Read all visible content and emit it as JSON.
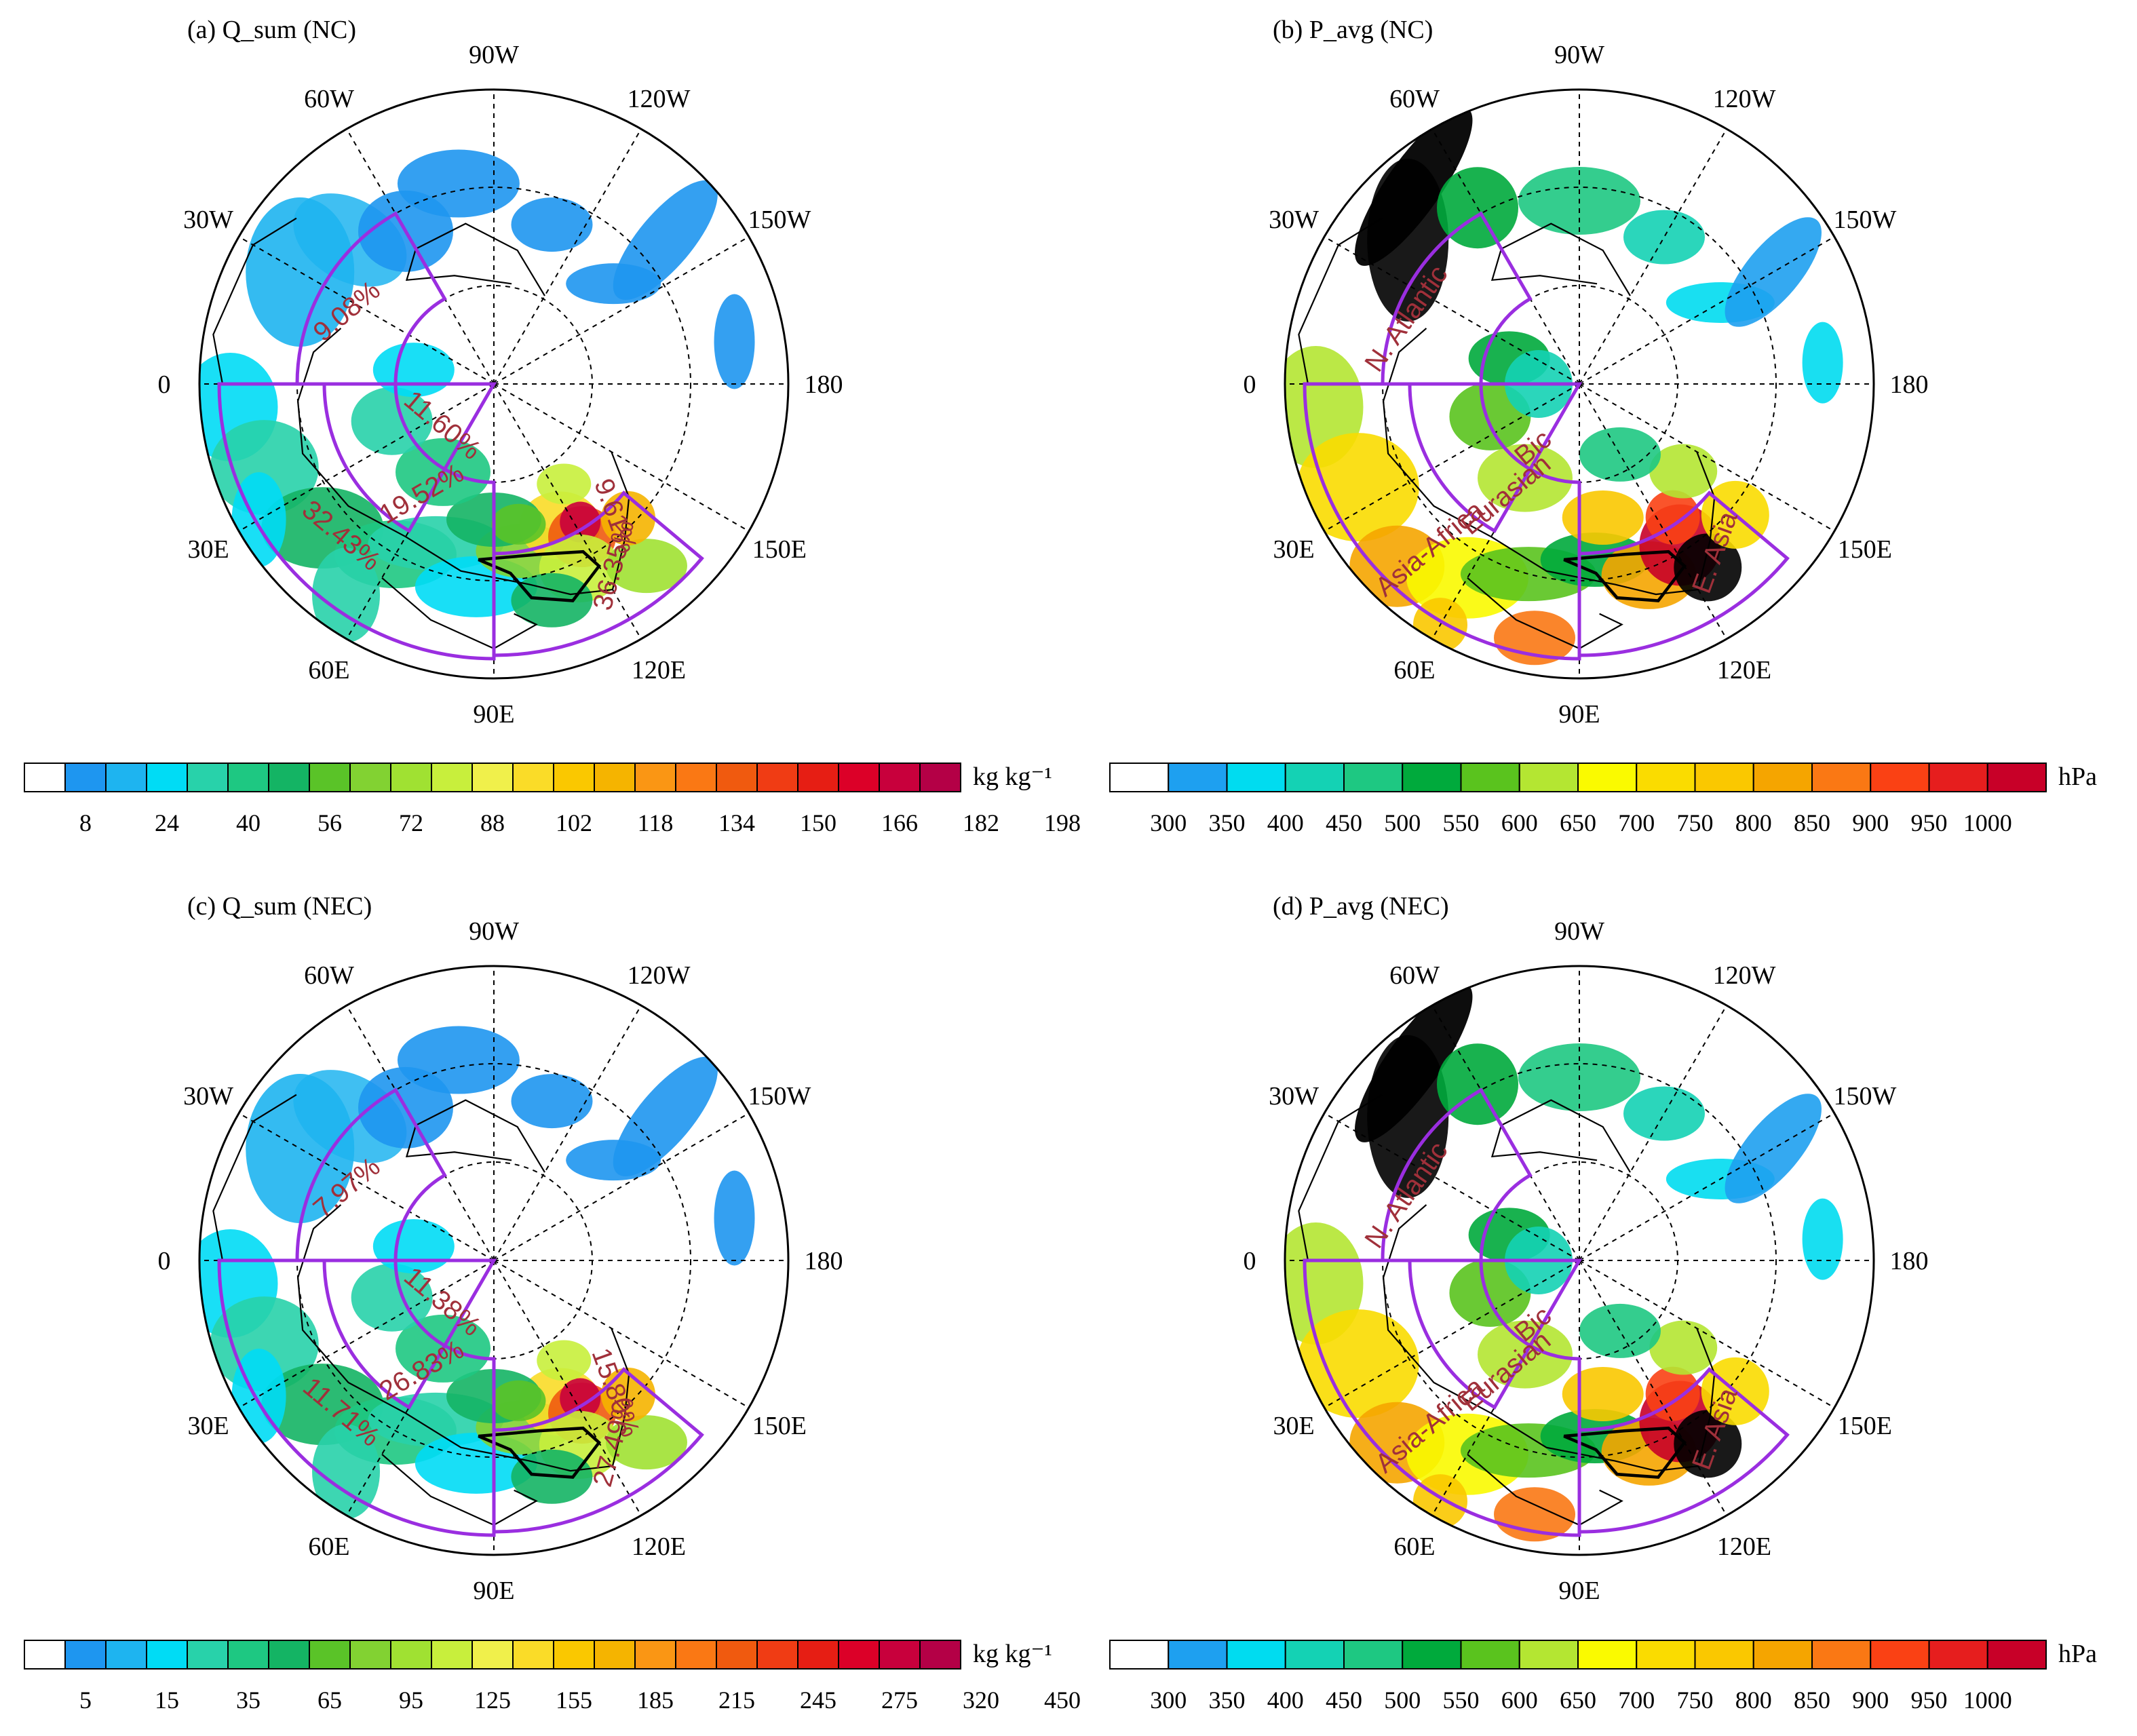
{
  "panels": [
    {
      "id": "a",
      "title": "(a) Q_sum (NC)",
      "kind": "Q",
      "outer_pct": {
        "n_atlantic": "9.08%",
        "asia_africa": "32.43%",
        "east_asia": "36.35%"
      },
      "inner_pct": {
        "arctic": "11.60%",
        "eurasian": "19.52%",
        "east_asia_upper": "9.61%"
      },
      "colorbar": {
        "unit": "kg kg⁻¹",
        "colors": [
          "#ffffff",
          "#1e96f0",
          "#1eb4f0",
          "#00dcf5",
          "#28d2aa",
          "#1ec882",
          "#14b464",
          "#5ac328",
          "#82d232",
          "#a0e132",
          "#c8ef3c",
          "#f0f04b",
          "#fadc28",
          "#fac800",
          "#f5b400",
          "#fa9614",
          "#fa7814",
          "#f05a0f",
          "#f03c14",
          "#e61e14",
          "#dc0028",
          "#c8003c",
          "#b40046"
        ],
        "labels": [
          "8",
          "24",
          "40",
          "56",
          "72",
          "88",
          "102",
          "118",
          "134",
          "150",
          "166",
          "182",
          "198"
        ]
      },
      "data_shading": "Q_sum"
    },
    {
      "id": "b",
      "title": "(b) P_avg (NC)",
      "kind": "P",
      "region_labels": {
        "n_atlantic": "N. Atlantic",
        "arctic": "Bic",
        "eurasian": "Eurasian",
        "asia_africa": "Asia-Africa",
        "east_asia": "E. Asia"
      },
      "colorbar": {
        "unit": "hPa",
        "colors": [
          "#ffffff",
          "#1ea0f0",
          "#00dcf0",
          "#14d2b4",
          "#1ec882",
          "#00aa3c",
          "#5ac31e",
          "#b4e632",
          "#fafa00",
          "#fadc00",
          "#fac800",
          "#f5a500",
          "#fa7814",
          "#fa4114",
          "#e61e1e",
          "#c80028"
        ],
        "labels": [
          "300",
          "350",
          "400",
          "450",
          "500",
          "550",
          "600",
          "650",
          "700",
          "750",
          "800",
          "850",
          "900",
          "950",
          "1000"
        ]
      },
      "data_shading": "P_avg"
    },
    {
      "id": "c",
      "title": "(c) Q_sum (NEC)",
      "kind": "Q",
      "outer_pct": {
        "n_atlantic": "7.97%",
        "asia_africa": "11.71%",
        "east_asia": "27.49%"
      },
      "inner_pct": {
        "arctic": "11.38%",
        "eurasian": "26.83%",
        "east_asia_upper": "15.80%"
      },
      "colorbar": {
        "unit": "kg kg⁻¹",
        "colors": [
          "#ffffff",
          "#1e96f0",
          "#1eb4f0",
          "#00dcf5",
          "#28d2aa",
          "#1ec882",
          "#14b464",
          "#5ac328",
          "#82d232",
          "#a0e132",
          "#c8ef3c",
          "#f0f04b",
          "#fadc28",
          "#fac800",
          "#f5b400",
          "#fa9614",
          "#fa7814",
          "#f05a0f",
          "#f03c14",
          "#e61e14",
          "#dc0028",
          "#c8003c",
          "#b40046"
        ],
        "labels": [
          "5",
          "15",
          "35",
          "65",
          "95",
          "125",
          "155",
          "185",
          "215",
          "245",
          "275",
          "320",
          "450"
        ]
      },
      "data_shading": "Q_sum"
    },
    {
      "id": "d",
      "title": "(d) P_avg (NEC)",
      "kind": "P",
      "region_labels": {
        "n_atlantic": "N. Atlantic",
        "arctic": "Bic",
        "eurasian": "Eurasian",
        "asia_africa": "Asia-Africa",
        "east_asia": "E. Asia"
      },
      "colorbar": {
        "unit": "hPa",
        "colors": [
          "#ffffff",
          "#1ea0f0",
          "#00dcf0",
          "#14d2b4",
          "#1ec882",
          "#00aa3c",
          "#5ac31e",
          "#b4e632",
          "#fafa00",
          "#fadc00",
          "#fac800",
          "#f5a500",
          "#fa7814",
          "#fa4114",
          "#e61e1e",
          "#c80028"
        ],
        "labels": [
          "300",
          "350",
          "400",
          "450",
          "500",
          "550",
          "600",
          "650",
          "700",
          "750",
          "800",
          "850",
          "900",
          "950",
          "1000"
        ]
      },
      "data_shading": "P_avg"
    }
  ],
  "longitude_labels": [
    "0",
    "30W",
    "60W",
    "90W",
    "120W",
    "150W",
    "180",
    "150E",
    "120E",
    "90E",
    "60E",
    "30E"
  ],
  "region_box_color": "#9a2ee0",
  "percent_text_color": "#a0303a",
  "projection": "north polar stereographic"
}
